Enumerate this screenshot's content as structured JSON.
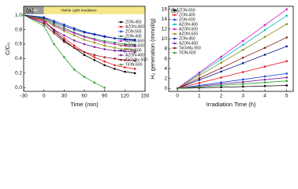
{
  "chart_data": [
    {
      "type": "line",
      "panel_label": "(a)",
      "x_label": "Time (min)",
      "y_label": "C/C₀",
      "annotations": [
        "Dark",
        "Visible Light Irradiation"
      ],
      "x": [
        -30,
        0,
        15,
        30,
        45,
        60,
        75,
        90,
        105,
        120,
        135
      ],
      "xlim": [
        -30,
        150
      ],
      "xticks": [
        -30,
        0,
        30,
        60,
        90,
        120,
        150
      ],
      "ylim": [
        -0.05,
        1.12
      ],
      "yticks": [
        {
          "value": 0,
          "label": "0.0"
        },
        0.2,
        0.4,
        0.6,
        0.8,
        {
          "value": 1,
          "label": "1.0"
        }
      ],
      "legend": "upper right",
      "series": [
        {
          "name": "ZON-450",
          "color": "#000000",
          "values": [
            1,
            0.93,
            0.78,
            0.65,
            0.55,
            0.45,
            0.38,
            0.31,
            0.26,
            0.22,
            0.2
          ]
        },
        {
          "name": "AZON-450",
          "color": "#e8141c",
          "values": [
            1,
            0.92,
            0.8,
            0.68,
            0.58,
            0.49,
            0.42,
            0.36,
            0.31,
            0.28,
            0.26
          ]
        },
        {
          "name": "ZON-550",
          "color": "#1a3fd6",
          "values": [
            1,
            0.97,
            0.92,
            0.87,
            0.82,
            0.77,
            0.74,
            0.71,
            0.68,
            0.66,
            0.65
          ]
        },
        {
          "name": "ZON-400",
          "color": "#1a8c2a",
          "values": [
            1,
            0.95,
            0.88,
            0.82,
            0.76,
            0.71,
            0.67,
            0.64,
            0.62,
            0.6,
            0.59
          ]
        },
        {
          "name": "AZON-550",
          "color": "#d418c8",
          "values": [
            1,
            0.93,
            0.86,
            0.8,
            0.75,
            0.7,
            0.66,
            0.62,
            0.6,
            0.58,
            0.57
          ]
        },
        {
          "name": "AZON-500",
          "color": "#8c8c10",
          "values": [
            1,
            0.94,
            0.85,
            0.78,
            0.72,
            0.66,
            0.62,
            0.58,
            0.55,
            0.53,
            0.52
          ]
        },
        {
          "name": "ZON-500",
          "color": "#0b1f8c",
          "values": [
            1,
            0.96,
            0.9,
            0.85,
            0.8,
            0.76,
            0.73,
            0.7,
            0.68,
            0.67,
            0.66
          ]
        },
        {
          "name": "AZON-400",
          "color": "#7a1fa0",
          "values": [
            1,
            0.9,
            0.8,
            0.72,
            0.65,
            0.6,
            0.56,
            0.53,
            0.51,
            0.5,
            0.49
          ]
        },
        {
          "name": "TaOxNy-550",
          "color": "#8c1a1a",
          "values": [
            1,
            0.88,
            0.75,
            0.63,
            0.55,
            0.49,
            0.45,
            0.42,
            0.4,
            0.38,
            0.37
          ]
        },
        {
          "name": "TiON-500",
          "color": "#2ca02c",
          "values": [
            1,
            0.85,
            0.6,
            0.42,
            0.25,
            0.15,
            0.07,
            0,
            null,
            null,
            null
          ]
        }
      ]
    },
    {
      "type": "line",
      "panel_label": "(b)",
      "x_label": "Irradiation Time (h)",
      "y_label": "H₂ generation (mmol/g)",
      "x": [
        0,
        1,
        2,
        3,
        4,
        5
      ],
      "xlim": [
        -0.4,
        5.3
      ],
      "xticks": [
        0,
        1,
        2,
        3,
        4,
        5
      ],
      "ylim": [
        -0.6,
        16.6
      ],
      "yticks": [
        0,
        2,
        4,
        6,
        8,
        10,
        12,
        14,
        16
      ],
      "legend": "upper left",
      "series": [
        {
          "name": "ZON-550",
          "color": "#000000",
          "values": [
            0,
            0.12,
            0.24,
            0.36,
            0.48,
            0.6
          ]
        },
        {
          "name": "ZON-400",
          "color": "#e8141c",
          "values": [
            0,
            1.1,
            2.2,
            3.3,
            4.4,
            5.5
          ]
        },
        {
          "name": "ZON-500",
          "color": "#1a3fd6",
          "values": [
            0,
            0.6,
            1.2,
            1.8,
            2.4,
            3
          ]
        },
        {
          "name": "AZON-400",
          "color": "#12b8c8",
          "values": [
            0,
            2.95,
            5.9,
            8.8,
            11.8,
            14.7
          ]
        },
        {
          "name": "AZON-500",
          "color": "#d418c8",
          "values": [
            0,
            3.2,
            6.4,
            9.6,
            12.8,
            16
          ]
        },
        {
          "name": "AZON-550",
          "color": "#8c8c10",
          "values": [
            0,
            2.6,
            5.2,
            7.8,
            10.4,
            13
          ]
        },
        {
          "name": "ZON-450",
          "color": "#0b1f8c",
          "values": [
            0,
            1.7,
            3.4,
            5.1,
            6.8,
            8.5
          ]
        },
        {
          "name": "AZON-450",
          "color": "#7a1fa0",
          "values": [
            0,
            0.44,
            0.88,
            1.3,
            1.76,
            2.2
          ]
        },
        {
          "name": "TaOxNy-550",
          "color": "#8c1a1a",
          "values": [
            0,
            2.06,
            4.1,
            6.2,
            8.2,
            10.3
          ]
        },
        {
          "name": "TiON-500",
          "color": "#2ca02c",
          "values": [
            0,
            0.3,
            0.6,
            0.9,
            1.2,
            1.5
          ]
        }
      ]
    }
  ]
}
